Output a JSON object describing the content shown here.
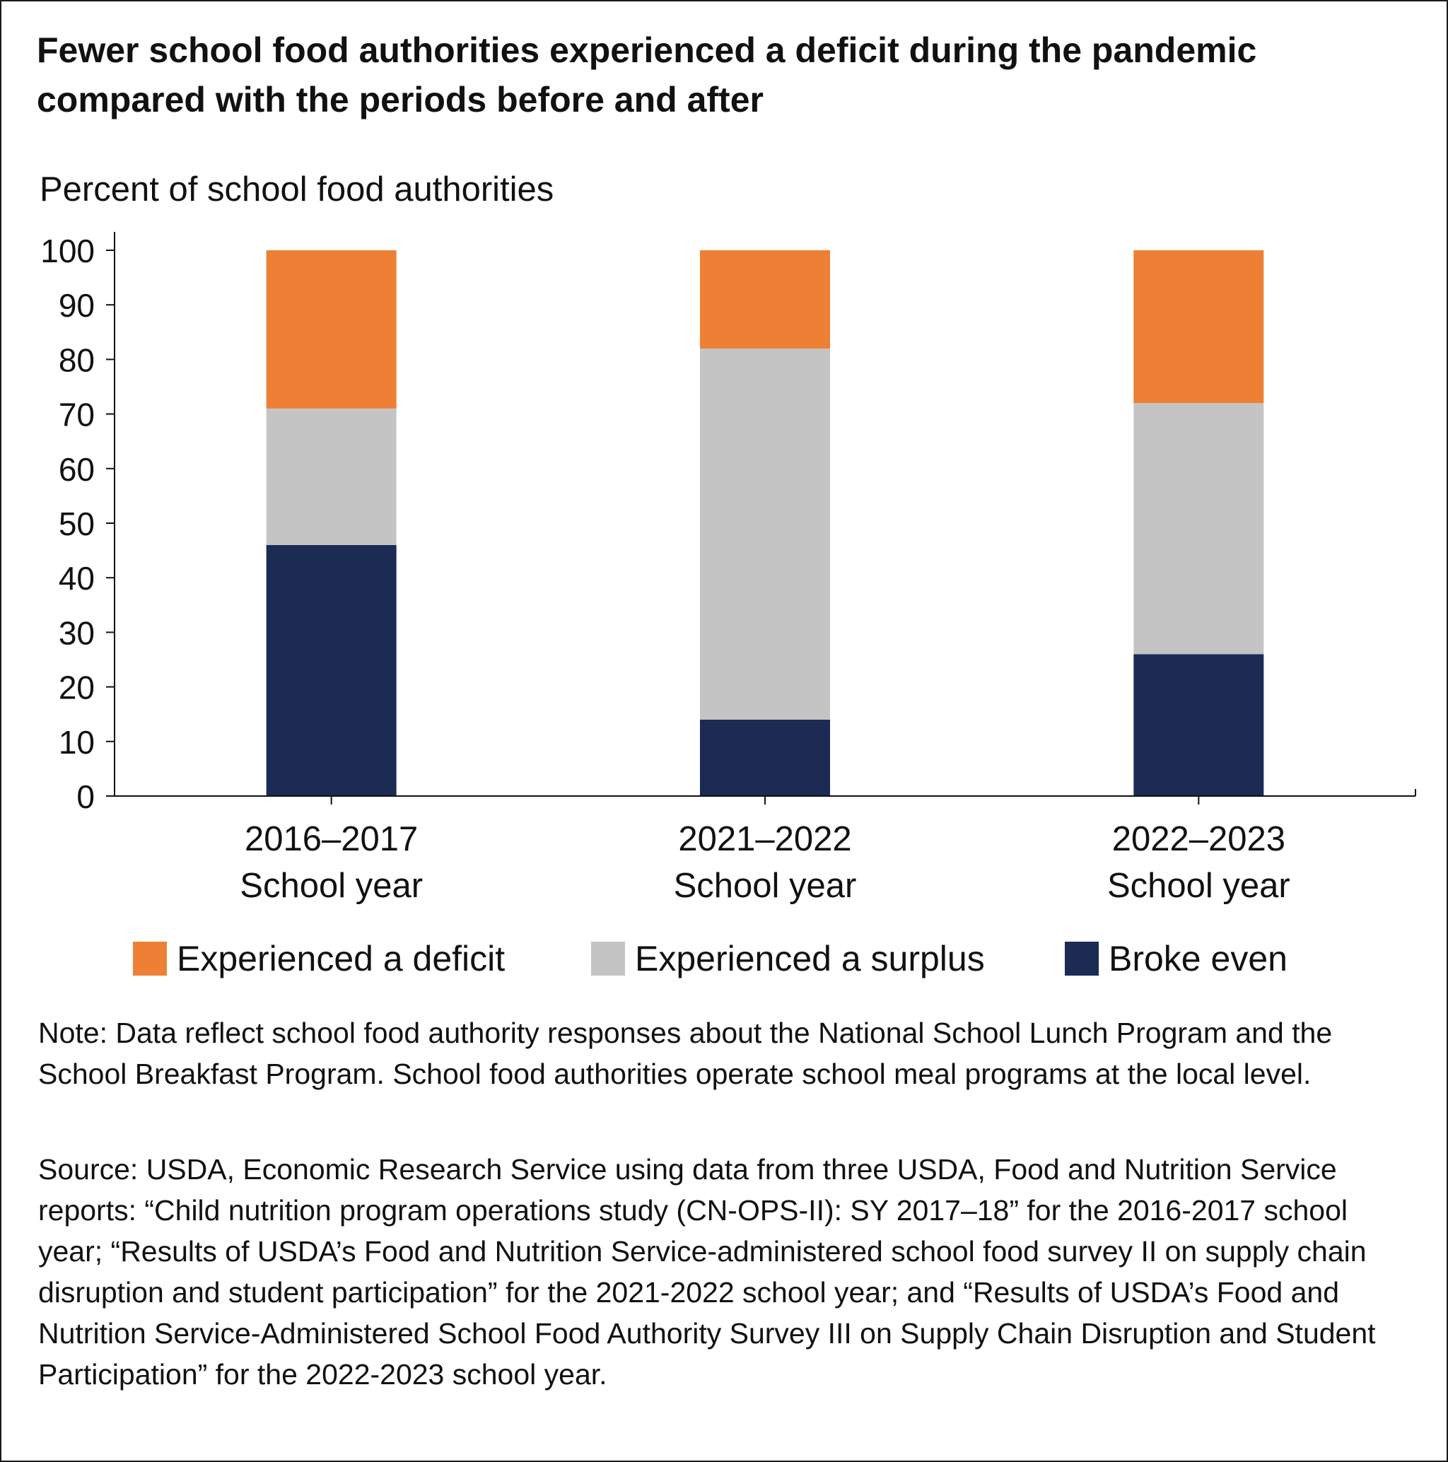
{
  "title": "Fewer school food authorities experienced a deficit during the pandemic compared with the periods before and after",
  "chart_data": {
    "type": "bar",
    "stacked": true,
    "categories": [
      [
        "2016–2017",
        "School year"
      ],
      [
        "2021–2022",
        "School year"
      ],
      [
        "2022–2023",
        "School year"
      ]
    ],
    "ylabel": "Percent of school food authorities",
    "ylim": [
      0,
      100
    ],
    "yticks": [
      0,
      10,
      20,
      30,
      40,
      50,
      60,
      70,
      80,
      90,
      100
    ],
    "grid": false,
    "legend_position": "bottom",
    "series": [
      {
        "name": "Broke even",
        "color": "#1c2b54",
        "values": [
          46,
          14,
          26
        ]
      },
      {
        "name": "Experienced a surplus",
        "color": "#c4c4c4",
        "values": [
          25,
          68,
          46
        ]
      },
      {
        "name": "Experienced a deficit",
        "color": "#ed8035",
        "values": [
          29,
          18,
          28
        ]
      }
    ]
  },
  "legend": [
    {
      "label": "Experienced a deficit",
      "color": "#ed8035"
    },
    {
      "label": "Experienced a surplus",
      "color": "#c4c4c4"
    },
    {
      "label": "Broke even",
      "color": "#1c2b54"
    }
  ],
  "note": "Note: Data reflect school food authority responses about the National School Lunch Program and the School Breakfast Program. School food authorities operate school meal programs at the local level.",
  "source": "Source: USDA, Economic Research Service using data from three USDA, Food and Nutrition Service reports: “Child nutrition program operations study (CN-OPS-II): SY 2017–18” for the 2016-2017 school year; “Results of USDA’s Food and Nutrition Service-administered school food survey II on supply chain disruption and student participation” for the 2021-2022 school year; and “Results of USDA’s Food and Nutrition Service-Administered School Food Authority Survey III on Supply Chain Disruption and Student Participation” for the 2022-2023 school year."
}
